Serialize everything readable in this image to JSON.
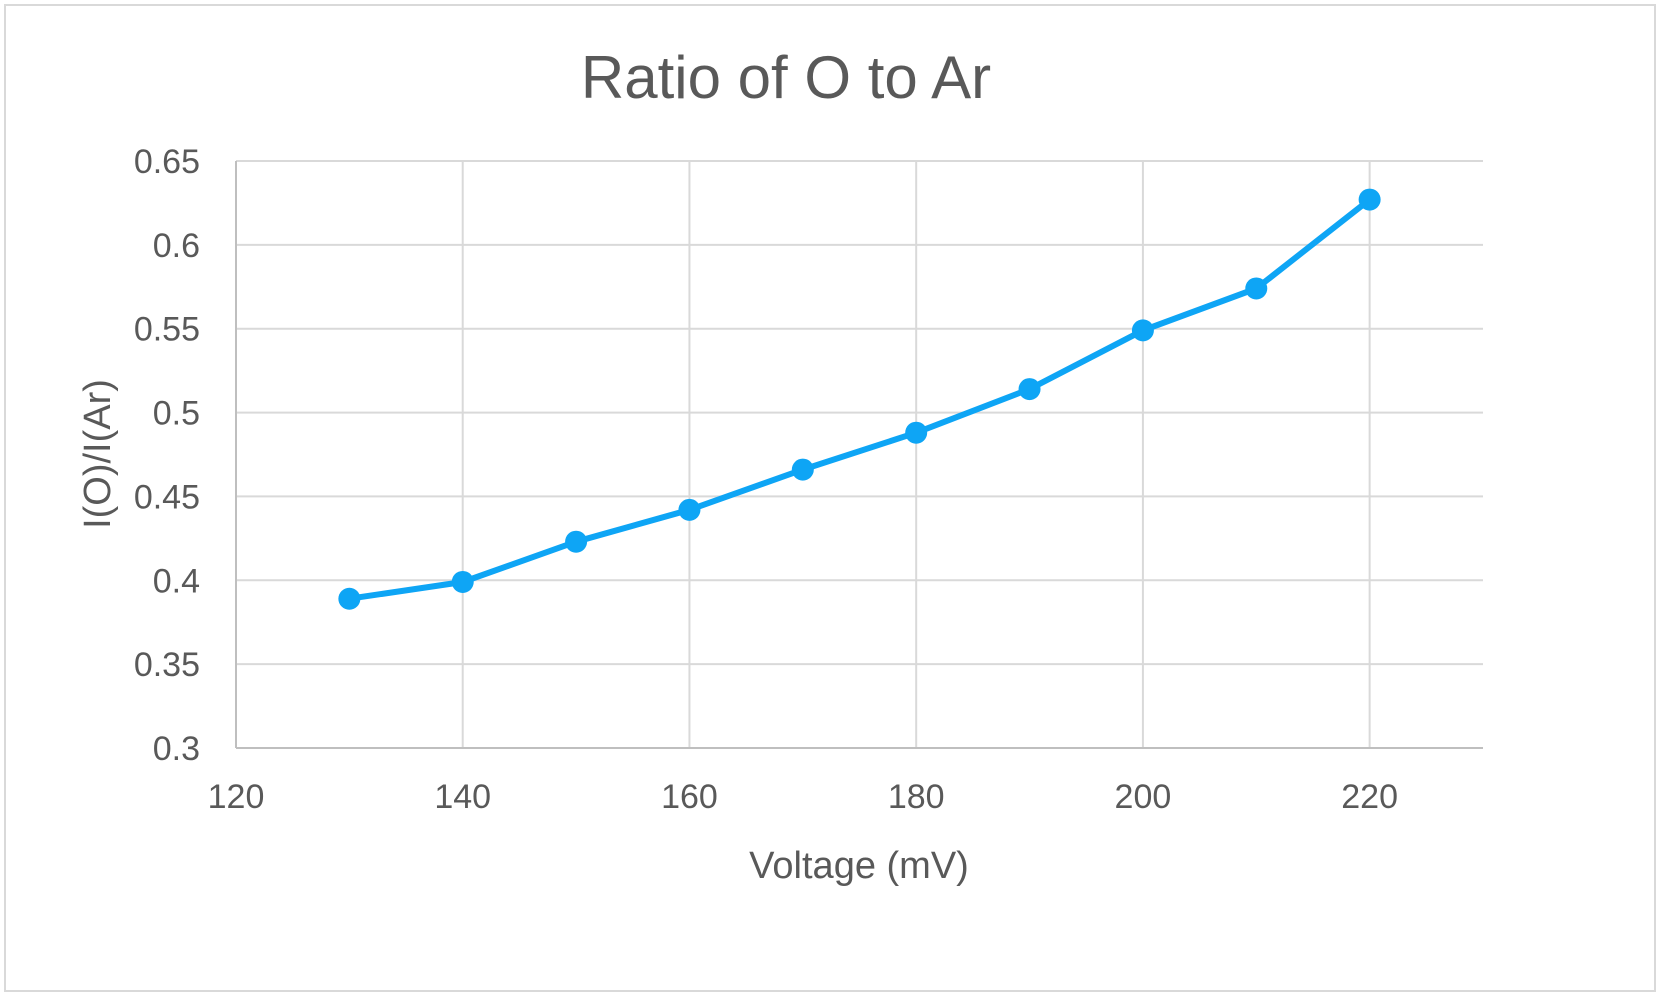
{
  "chart_data": {
    "type": "line",
    "title": "Ratio of O to Ar",
    "xlabel": "Voltage (mV)",
    "ylabel": "I(O)/I(Ar)",
    "xlim": [
      120,
      230
    ],
    "ylim": [
      0.3,
      0.65
    ],
    "x_ticks": [
      120,
      140,
      160,
      180,
      200,
      220
    ],
    "y_ticks": [
      0.3,
      0.35,
      0.4,
      0.45,
      0.5,
      0.55,
      0.6,
      0.65
    ],
    "x_tick_labels": [
      "120",
      "140",
      "160",
      "180",
      "200",
      "220"
    ],
    "y_tick_labels": [
      "0.3",
      "0.35",
      "0.4",
      "0.45",
      "0.5",
      "0.55",
      "0.6",
      "0.65"
    ],
    "grid": true,
    "legend": "none",
    "series": [
      {
        "x": [
          130,
          140,
          150,
          160,
          170,
          180,
          190,
          200,
          210,
          220
        ],
        "y": [
          0.389,
          0.399,
          0.423,
          0.442,
          0.466,
          0.488,
          0.514,
          0.549,
          0.574,
          0.627
        ],
        "color": "#0ea5f5"
      }
    ]
  }
}
